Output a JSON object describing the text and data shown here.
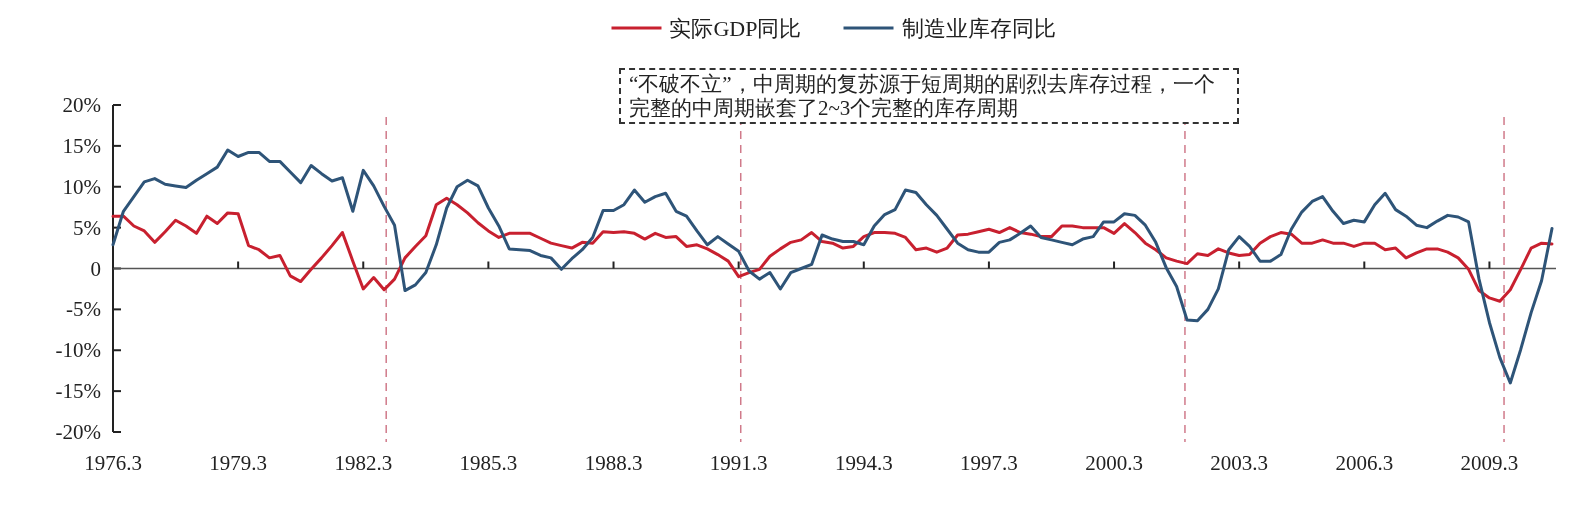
{
  "chart_data": {
    "type": "line",
    "legend": "top",
    "categories": [
      "1976.3",
      null,
      null,
      null,
      null,
      null,
      null,
      null,
      null,
      null,
      null,
      null,
      "1979.3",
      null,
      null,
      null,
      null,
      null,
      null,
      null,
      null,
      null,
      null,
      null,
      "1982.3",
      null,
      null,
      null,
      null,
      null,
      null,
      null,
      null,
      null,
      null,
      null,
      "1985.3",
      null,
      null,
      null,
      null,
      null,
      null,
      null,
      null,
      null,
      null,
      null,
      "1988.3",
      null,
      null,
      null,
      null,
      null,
      null,
      null,
      null,
      null,
      null,
      null,
      "1991.3",
      null,
      null,
      null,
      null,
      null,
      null,
      null,
      null,
      null,
      null,
      null,
      "1994.3",
      null,
      null,
      null,
      null,
      null,
      null,
      null,
      null,
      null,
      null,
      null,
      "1997.3",
      null,
      null,
      null,
      null,
      null,
      null,
      null,
      null,
      null,
      null,
      null,
      "2000.3",
      null,
      null,
      null,
      null,
      null,
      null,
      null,
      null,
      null,
      null,
      null,
      "2003.3",
      null,
      null,
      null,
      null,
      null,
      null,
      null,
      null,
      null,
      null,
      null,
      "2006.3",
      null,
      null,
      null,
      null,
      null,
      null,
      null,
      null,
      null,
      null,
      null,
      "2009.3",
      null,
      null,
      null,
      null,
      null,
      null
    ],
    "series": [
      {
        "name": "实际GDP同比",
        "color": "#c8202f",
        "values": [
          6.4,
          6.4,
          5.2,
          4.6,
          3.2,
          4.5,
          5.9,
          5.2,
          4.3,
          6.4,
          5.5,
          6.8,
          6.7,
          2.8,
          2.3,
          1.3,
          1.6,
          -0.9,
          -1.6,
          -0.1,
          1.3,
          2.8,
          4.4,
          0.9,
          -2.5,
          -1.1,
          -2.6,
          -1.3,
          1.3,
          2.7,
          4.0,
          7.8,
          8.6,
          7.8,
          6.8,
          5.6,
          4.6,
          3.8,
          4.3,
          4.3,
          4.3,
          3.7,
          3.1,
          2.8,
          2.5,
          3.2,
          3.1,
          4.5,
          4.4,
          4.5,
          4.3,
          3.6,
          4.3,
          3.8,
          3.9,
          2.7,
          2.9,
          2.4,
          1.7,
          0.9,
          -1.0,
          -0.5,
          -0.1,
          1.5,
          2.4,
          3.2,
          3.5,
          4.4,
          3.3,
          3.1,
          2.5,
          2.7,
          3.9,
          4.4,
          4.4,
          4.3,
          3.8,
          2.3,
          2.5,
          2.0,
          2.5,
          4.1,
          4.2,
          4.5,
          4.8,
          4.4,
          5.0,
          4.4,
          4.2,
          3.9,
          3.9,
          5.2,
          5.2,
          5.0,
          5.0,
          5.0,
          4.3,
          5.5,
          4.4,
          3.1,
          2.3,
          1.3,
          0.9,
          0.6,
          1.8,
          1.6,
          2.4,
          1.9,
          1.6,
          1.7,
          3.1,
          3.9,
          4.4,
          4.2,
          3.1,
          3.1,
          3.5,
          3.1,
          3.1,
          2.7,
          3.1,
          3.1,
          2.3,
          2.5,
          1.3,
          1.9,
          2.4,
          2.4,
          2.0,
          1.3,
          -0.1,
          -2.7,
          -3.6,
          -4.0,
          -2.6,
          -0.1,
          2.5,
          3.1,
          3.0
        ]
      },
      {
        "name": "制造业库存同比",
        "color": "#2e5478",
        "values": [
          2.9,
          7.0,
          8.8,
          10.6,
          11.0,
          10.3,
          10.1,
          9.9,
          10.8,
          11.6,
          12.4,
          14.5,
          13.7,
          14.2,
          14.2,
          13.1,
          13.1,
          11.8,
          10.5,
          12.6,
          11.6,
          10.7,
          11.1,
          7.0,
          12.0,
          10.1,
          7.6,
          5.3,
          -2.7,
          -2.0,
          -0.5,
          2.9,
          7.4,
          10.0,
          10.8,
          10.1,
          7.4,
          5.2,
          2.4,
          2.3,
          2.2,
          1.6,
          1.3,
          -0.1,
          1.2,
          2.3,
          3.8,
          7.1,
          7.1,
          7.8,
          9.6,
          8.1,
          8.8,
          9.2,
          7.0,
          6.4,
          4.6,
          2.9,
          3.9,
          3.0,
          2.1,
          -0.3,
          -1.3,
          -0.5,
          -2.5,
          -0.5,
          0.0,
          0.5,
          4.1,
          3.6,
          3.3,
          3.3,
          2.9,
          5.2,
          6.6,
          7.2,
          9.6,
          9.3,
          7.8,
          6.5,
          4.8,
          3.1,
          2.3,
          2.0,
          2.0,
          3.2,
          3.5,
          4.3,
          5.2,
          3.8,
          3.5,
          3.2,
          2.9,
          3.6,
          3.9,
          5.7,
          5.7,
          6.7,
          6.5,
          5.3,
          3.2,
          0.1,
          -2.2,
          -6.3,
          -6.4,
          -5.0,
          -2.5,
          2.3,
          3.9,
          2.7,
          0.9,
          0.9,
          1.7,
          4.8,
          6.9,
          8.2,
          8.8,
          7.0,
          5.5,
          5.9,
          5.7,
          7.8,
          9.2,
          7.2,
          6.4,
          5.3,
          5.0,
          5.8,
          6.5,
          6.3,
          5.7,
          -1.3,
          -6.6,
          -10.9,
          -14.0,
          -9.9,
          -5.4,
          -1.5,
          4.9
        ]
      }
    ],
    "ylim": [
      -20,
      20
    ],
    "yticks": [
      {
        "value": -20,
        "label": "-20%"
      },
      {
        "value": -15,
        "label": "-15%"
      },
      {
        "value": -10,
        "label": "-10%"
      },
      {
        "value": -5,
        "label": "-5%"
      },
      0,
      {
        "value": 5,
        "label": "5%"
      },
      {
        "value": 10,
        "label": "10%"
      },
      {
        "value": 15,
        "label": "15%"
      },
      {
        "value": 20,
        "label": "20%"
      }
    ],
    "annotations": [
      "“不破不立”，中周期的复苏源于短周期的剧烈去库存过程，一个完整的中周期嵌套了2~3个完整的库存周期"
    ]
  }
}
